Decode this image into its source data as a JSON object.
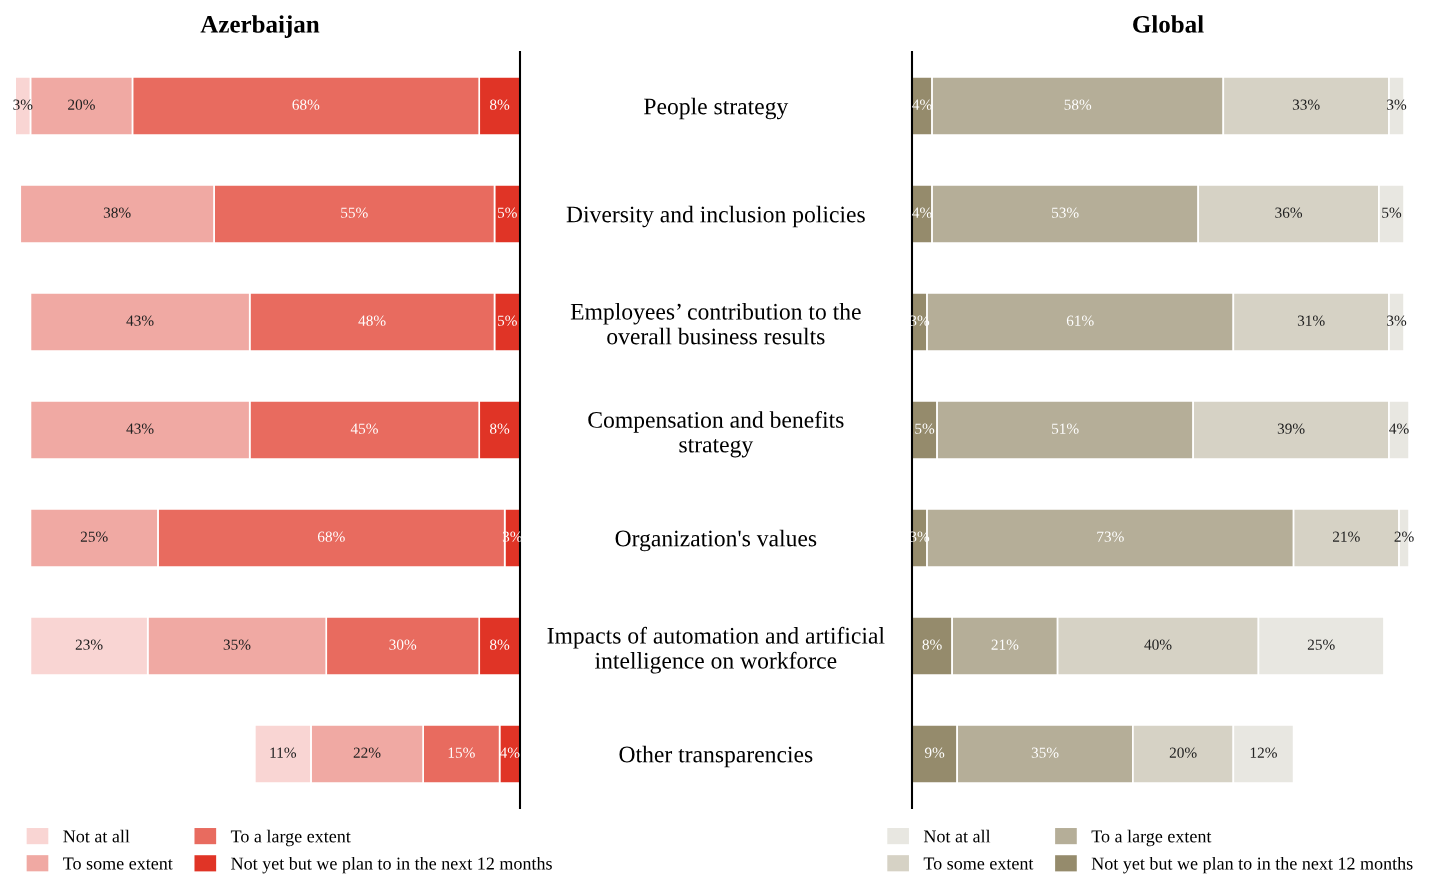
{
  "chart_data": [
    {
      "type": "bar",
      "orientation": "horizontal",
      "stacked": true,
      "title": "Azerbaijan",
      "tick_labels": "y",
      "legend": "bottom",
      "categories": [
        "People strategy",
        "Diversity and inclusion policies",
        "Employees’ contribution to the\noverall business results",
        "Compensation and benefits\nstrategy",
        "Organization's values",
        "Impacts of automation and artificial\nintelligence on workforce",
        "Other transparencies"
      ],
      "series": [
        {
          "name": "Not yet but we plan to in the next 12 months",
          "color": "#e03426",
          "values": [
            8,
            5,
            5,
            8,
            3,
            8,
            4
          ],
          "value_labels": [
            "8%",
            "5%",
            "5%",
            "8%",
            "3%",
            "8%",
            "4%"
          ]
        },
        {
          "name": "To a large extent",
          "color": "#e86b5f",
          "values": [
            68,
            55,
            48,
            45,
            68,
            30,
            15
          ],
          "value_labels": [
            "68%",
            "55%",
            "48%",
            "45%",
            "68%",
            "30%",
            "15%"
          ]
        },
        {
          "name": "To some extent",
          "color": "#f0a9a3",
          "values": [
            20,
            38,
            43,
            43,
            25,
            35,
            22
          ],
          "value_labels": [
            "20%",
            "38%",
            "43%",
            "43%",
            "25%",
            "35%",
            "22%"
          ]
        },
        {
          "name": "Not at all",
          "color": "#f9d5d3",
          "values": [
            3,
            null,
            null,
            null,
            null,
            23,
            11
          ],
          "value_labels": [
            "3%",
            null,
            null,
            null,
            null,
            "23%",
            "11%"
          ]
        }
      ]
    },
    {
      "type": "bar",
      "orientation": "horizontal",
      "stacked": true,
      "title": "Global",
      "tick_labels": false,
      "legend": "bottom",
      "categories": [
        null,
        null,
        null,
        null,
        null,
        null,
        null
      ],
      "series": [
        {
          "name": "Not yet but we plan to in the next 12 months",
          "color": "#958b6c",
          "values": [
            4,
            4,
            3,
            5,
            3,
            8,
            9
          ],
          "value_labels": [
            "4%",
            "4%",
            "3%",
            "5%",
            "3%",
            "8%",
            "9%"
          ]
        },
        {
          "name": "To a large extent",
          "color": "#b5ae98",
          "values": [
            58,
            53,
            61,
            51,
            73,
            21,
            35
          ],
          "value_labels": [
            "58%",
            "53%",
            "61%",
            "51%",
            "73%",
            "21%",
            "35%"
          ]
        },
        {
          "name": "To some extent",
          "color": "#d6d2c5",
          "values": [
            33,
            36,
            31,
            39,
            21,
            40,
            20
          ],
          "value_labels": [
            "33%",
            "36%",
            "31%",
            "39%",
            "21%",
            "40%",
            "20%"
          ]
        },
        {
          "name": "Not at all",
          "color": "#e8e7e1",
          "values": [
            3,
            5,
            3,
            4,
            2,
            25,
            12
          ],
          "value_labels": [
            "3%",
            "5%",
            "3%",
            "4%",
            "2%",
            "25%",
            "12%"
          ]
        }
      ]
    }
  ]
}
